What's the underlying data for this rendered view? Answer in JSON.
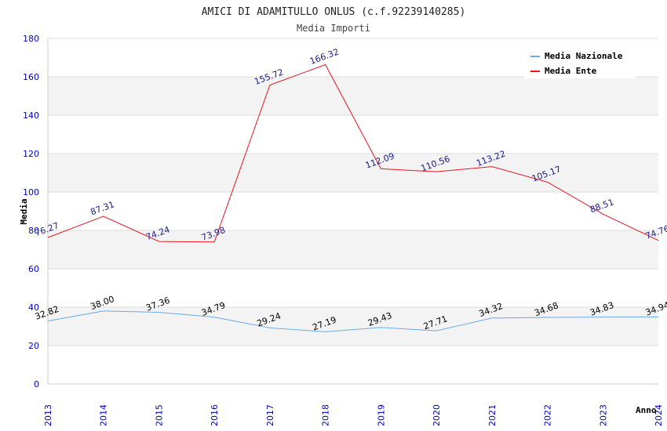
{
  "chart_data": {
    "type": "line",
    "title": "AMICI DI ADAMITULLO ONLUS (c.f.92239140285)",
    "subtitle": "Media Importi",
    "xlabel": "Anno",
    "ylabel": "Media",
    "ylim": [
      0,
      180
    ],
    "yticks": [
      "0",
      "20",
      "40",
      "60",
      "80",
      "100",
      "120",
      "140",
      "160",
      "180"
    ],
    "categories": [
      "2013",
      "2014",
      "2015",
      "2016",
      "2017",
      "2018",
      "2019",
      "2020",
      "2021",
      "2022",
      "2023",
      "2024"
    ],
    "legend_position": "top-right",
    "series": [
      {
        "name": "Media Nazionale",
        "color": "#6aaae8",
        "label_color": "#000000",
        "values": [
          32.82,
          38.0,
          37.36,
          34.79,
          29.24,
          27.19,
          29.43,
          27.71,
          34.32,
          34.68,
          34.83,
          34.94
        ],
        "labels": [
          "32.82",
          "38.00",
          "37.36",
          "34.79",
          "29.24",
          "27.19",
          "29.43",
          "27.71",
          "34.32",
          "34.68",
          "34.83",
          "34.94"
        ]
      },
      {
        "name": "Media Ente",
        "color": "#e8161e",
        "label_color": "#1c1c8c",
        "values": [
          76.27,
          87.31,
          74.24,
          73.98,
          155.72,
          166.32,
          112.09,
          110.56,
          113.22,
          105.17,
          88.51,
          74.76
        ],
        "labels": [
          "76.27",
          "87.31",
          "74.24",
          "73.98",
          "155.72",
          "166.32",
          "112.09",
          "110.56",
          "113.22",
          "105.17",
          "88.51",
          "74.76"
        ]
      }
    ]
  },
  "colors": {
    "axis_text": "#0000c8",
    "band": "#f3f3f3",
    "grid": "#dcdcdc"
  }
}
